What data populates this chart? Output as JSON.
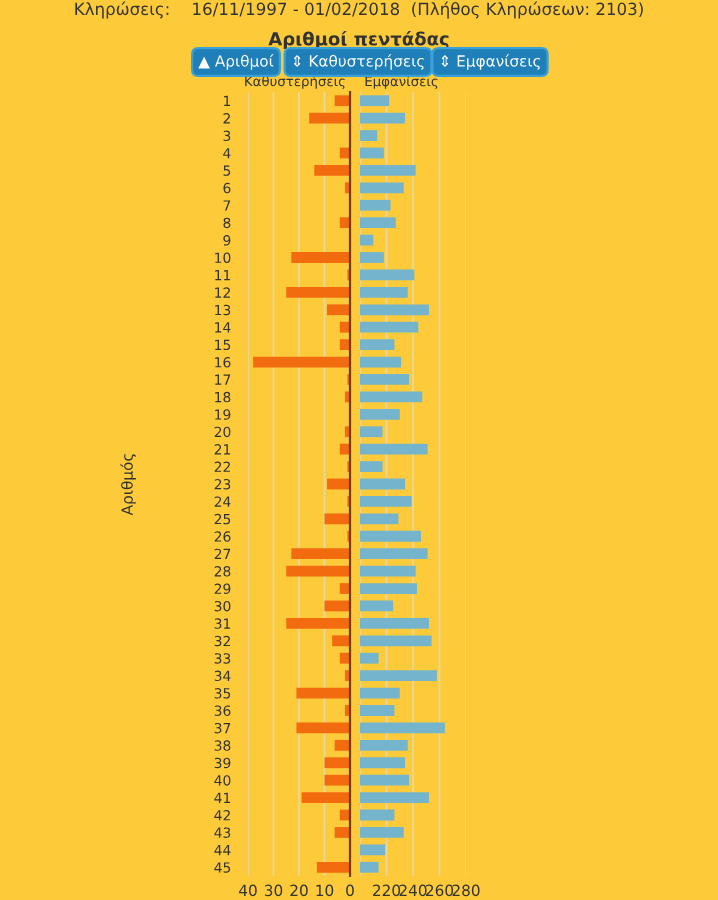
{
  "chart_data": [
    {
      "type": "bar",
      "orientation": "horizontal",
      "title": "Αριθμοί πεντάδας",
      "subtitle": "Κληρώσεις:    16/11/1997 - 01/02/2018  (Πλήθος Κληρώσεων: 2103)",
      "ylabel": "Αριθμός",
      "annotations": [
        "▲ Αριθμοί",
        "⇕ Καθυστερήσεις",
        "⇕ Εμφανίσεις"
      ],
      "categories": [
        "1",
        "2",
        "3",
        "4",
        "5",
        "6",
        "7",
        "8",
        "9",
        "10",
        "11",
        "12",
        "13",
        "14",
        "15",
        "16",
        "17",
        "18",
        "19",
        "20",
        "21",
        "22",
        "23",
        "24",
        "25",
        "26",
        "27",
        "28",
        "29",
        "30",
        "31",
        "32",
        "33",
        "34",
        "35",
        "36",
        "37",
        "38",
        "39",
        "40",
        "41",
        "42",
        "43",
        "44",
        "45"
      ],
      "series": [
        {
          "name": "Καθυστερήσεις",
          "color": "#f26b0f",
          "values": [
            6,
            16,
            0,
            4,
            14,
            2,
            0,
            4,
            0,
            23,
            1,
            25,
            9,
            4,
            4,
            38,
            1,
            2,
            0,
            2,
            4,
            1,
            9,
            1,
            10,
            1,
            23,
            25,
            4,
            10,
            25,
            7,
            4,
            2,
            21,
            2,
            21,
            6,
            10,
            10,
            19,
            4,
            6,
            0,
            13
          ]
        }
      ],
      "xlim": [
        40,
        0
      ],
      "xticks": [
        40,
        30,
        20,
        10,
        0
      ],
      "grid": "x"
    },
    {
      "type": "bar",
      "orientation": "horizontal",
      "categories": [
        "1",
        "2",
        "3",
        "4",
        "5",
        "6",
        "7",
        "8",
        "9",
        "10",
        "11",
        "12",
        "13",
        "14",
        "15",
        "16",
        "17",
        "18",
        "19",
        "20",
        "21",
        "22",
        "23",
        "24",
        "25",
        "26",
        "27",
        "28",
        "29",
        "30",
        "31",
        "32",
        "33",
        "34",
        "35",
        "36",
        "37",
        "38",
        "39",
        "40",
        "41",
        "42",
        "43",
        "44",
        "45"
      ],
      "series": [
        {
          "name": "Εμφανίσεις",
          "color": "#74b4cc",
          "values": [
            222,
            234,
            213,
            218,
            242,
            233,
            223,
            227,
            210,
            218,
            241,
            236,
            252,
            244,
            226,
            231,
            237,
            247,
            230,
            217,
            251,
            217,
            234,
            239,
            229,
            246,
            251,
            242,
            243,
            225,
            252,
            254,
            214,
            258,
            230,
            226,
            264,
            236,
            234,
            237,
            252,
            226,
            233,
            219,
            214
          ]
        }
      ],
      "xlim": [
        200,
        280
      ],
      "xticks": [
        {
          "value": 200,
          "label": null
        },
        220,
        240,
        260,
        280
      ],
      "grid": "x",
      "tick_labels": "x"
    }
  ]
}
